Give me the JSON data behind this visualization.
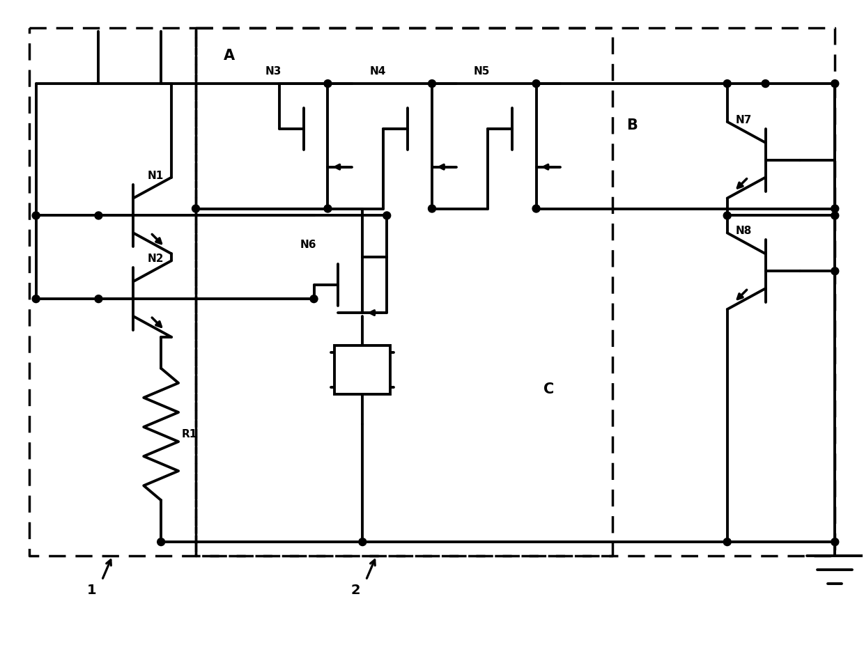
{
  "background": "#ffffff",
  "line_color": "#000000",
  "lw": 2.8,
  "dash_lw": 2.5,
  "dot_r": 0.55,
  "figsize": [
    12.4,
    9.39
  ],
  "dpi": 100,
  "xlim": [
    0,
    124
  ],
  "ylim": [
    0,
    93.9
  ]
}
